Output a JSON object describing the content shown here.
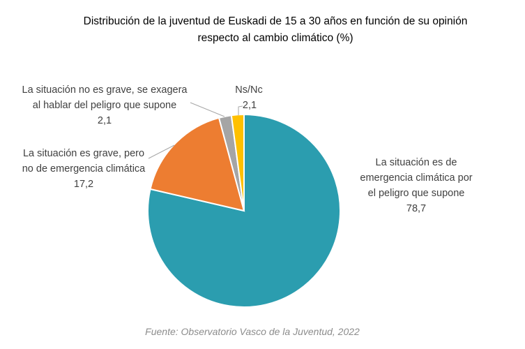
{
  "chart_data": {
    "type": "pie",
    "title": [
      "Distribución de la juventud de Euskadi de 15 a 30 años en función de su opinión",
      "respecto al cambio climático (%)"
    ],
    "start": "top",
    "direction": "clockwise",
    "slices": [
      {
        "label": [
          "La situación es de",
          "emergencia climática por",
          "el  peligro que supone"
        ],
        "value": 78.7,
        "value_label": "78,7",
        "color": "#2B9DAF"
      },
      {
        "label": [
          "La situación es grave, pero",
          "no de emergencia  climática"
        ],
        "value": 17.2,
        "value_label": "17,2",
        "color": "#ED7D31"
      },
      {
        "label": [
          "La situación no es grave, se exagera",
          "al hablar  del peligro que supone"
        ],
        "value": 2.1,
        "value_label": "2,1",
        "color": "#A5A5A5"
      },
      {
        "label": [
          "Ns/Nc"
        ],
        "value": 2.1,
        "value_label": "2,1",
        "color": "#FFC000"
      }
    ],
    "source": "Fuente: Observatorio Vasco de la Juventud, 2022"
  }
}
